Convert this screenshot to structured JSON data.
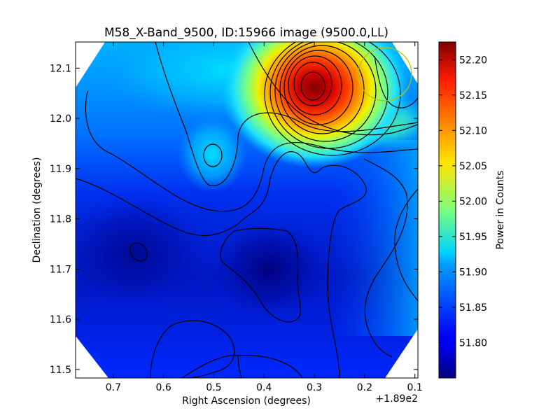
{
  "chart_data": {
    "type": "heatmap",
    "title": "M58_X-Band_9500, ID:15966 image (9500.0,LL)",
    "xlabel": "Right Ascension (degrees)",
    "ylabel": "Declination (degrees)",
    "x_offset_label": "+1.89e2",
    "x_ticks": [
      0.7,
      0.6,
      0.5,
      0.4,
      0.3,
      0.2,
      0.1
    ],
    "x_tick_labels": [
      "0.7",
      "0.6",
      "0.5",
      "0.4",
      "0.3",
      "0.2",
      "0.1"
    ],
    "y_ticks": [
      11.5,
      11.6,
      11.7,
      11.8,
      11.9,
      12.0,
      12.1
    ],
    "y_tick_labels": [
      "11.5",
      "11.6",
      "11.7",
      "11.8",
      "11.9",
      "12.0",
      "12.1"
    ],
    "xlim": [
      0.775,
      0.094
    ],
    "ylim": [
      11.483,
      12.152
    ],
    "colorbar": {
      "label": "Power in Counts",
      "range": [
        51.75,
        52.225
      ],
      "ticks": [
        51.8,
        51.85,
        51.9,
        51.95,
        52.0,
        52.05,
        52.1,
        52.15,
        52.2
      ],
      "tick_labels": [
        "51.80",
        "51.85",
        "51.90",
        "51.95",
        "52.00",
        "52.05",
        "52.10",
        "52.15",
        "52.20"
      ],
      "colormap": "jet"
    },
    "features": [
      {
        "kind": "peak",
        "ra": 0.29,
        "dec": 12.07,
        "value": 52.22
      },
      {
        "kind": "local-max",
        "ra": 0.495,
        "dec": 11.925,
        "value": 51.92
      },
      {
        "kind": "minimum",
        "ra": 0.36,
        "dec": 11.7,
        "value": 51.76
      },
      {
        "kind": "minimum",
        "ra": 0.64,
        "dec": 11.725,
        "value": 51.77
      }
    ],
    "beam_circle": {
      "ra": 0.155,
      "dec": 12.085,
      "color": "#bfbf00"
    }
  }
}
